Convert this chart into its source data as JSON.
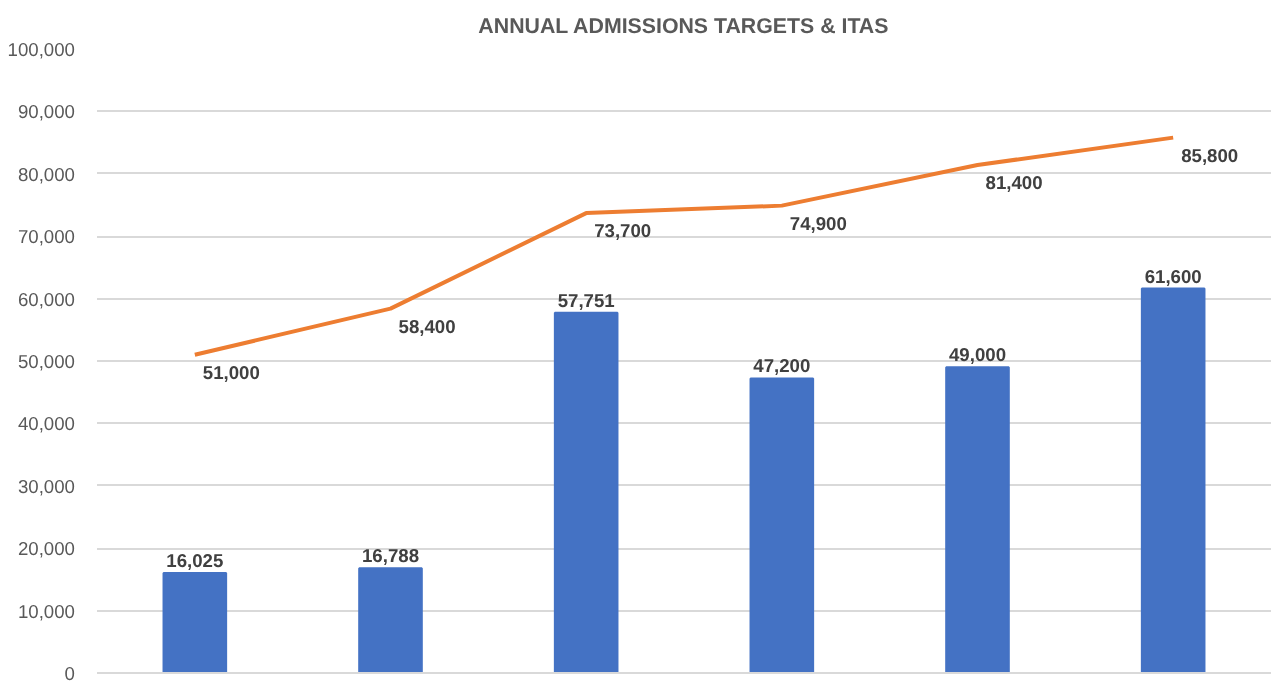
{
  "chart_data": {
    "type": "bar",
    "title": "ANNUAL ADMISSIONS TARGETS & ITAS",
    "categories": [
      null,
      null,
      null,
      null,
      null,
      null
    ],
    "series": [
      {
        "color": "#4472c4",
        "values": [
          16025,
          16788,
          57751,
          47200,
          49000,
          61600
        ],
        "value_labels": [
          "16,025",
          "16,788",
          "57,751",
          "47,200",
          "49,000",
          "61,600"
        ]
      },
      {
        "type": "line",
        "color": "#ed7d31",
        "values": [
          51000,
          58400,
          73700,
          74900,
          81400,
          85800
        ],
        "value_labels": [
          "51,000",
          "58,400",
          "73,700",
          "74,900",
          "81,400",
          "85,800"
        ]
      }
    ],
    "ylim": [
      0,
      100000
    ],
    "yticks": [
      {
        "value": 0,
        "label": "0"
      },
      {
        "value": 10000,
        "label": "10,000"
      },
      {
        "value": 20000,
        "label": "20,000"
      },
      {
        "value": 30000,
        "label": "30,000"
      },
      {
        "value": 40000,
        "label": "40,000"
      },
      {
        "value": 50000,
        "label": "50,000"
      },
      {
        "value": 60000,
        "label": "60,000"
      },
      {
        "value": 70000,
        "label": "70,000"
      },
      {
        "value": 80000,
        "label": "80,000"
      },
      {
        "value": 90000,
        "label": "90,000"
      },
      {
        "value": 100000,
        "label": "100,000"
      }
    ],
    "grid": "y",
    "marker": "none"
  }
}
